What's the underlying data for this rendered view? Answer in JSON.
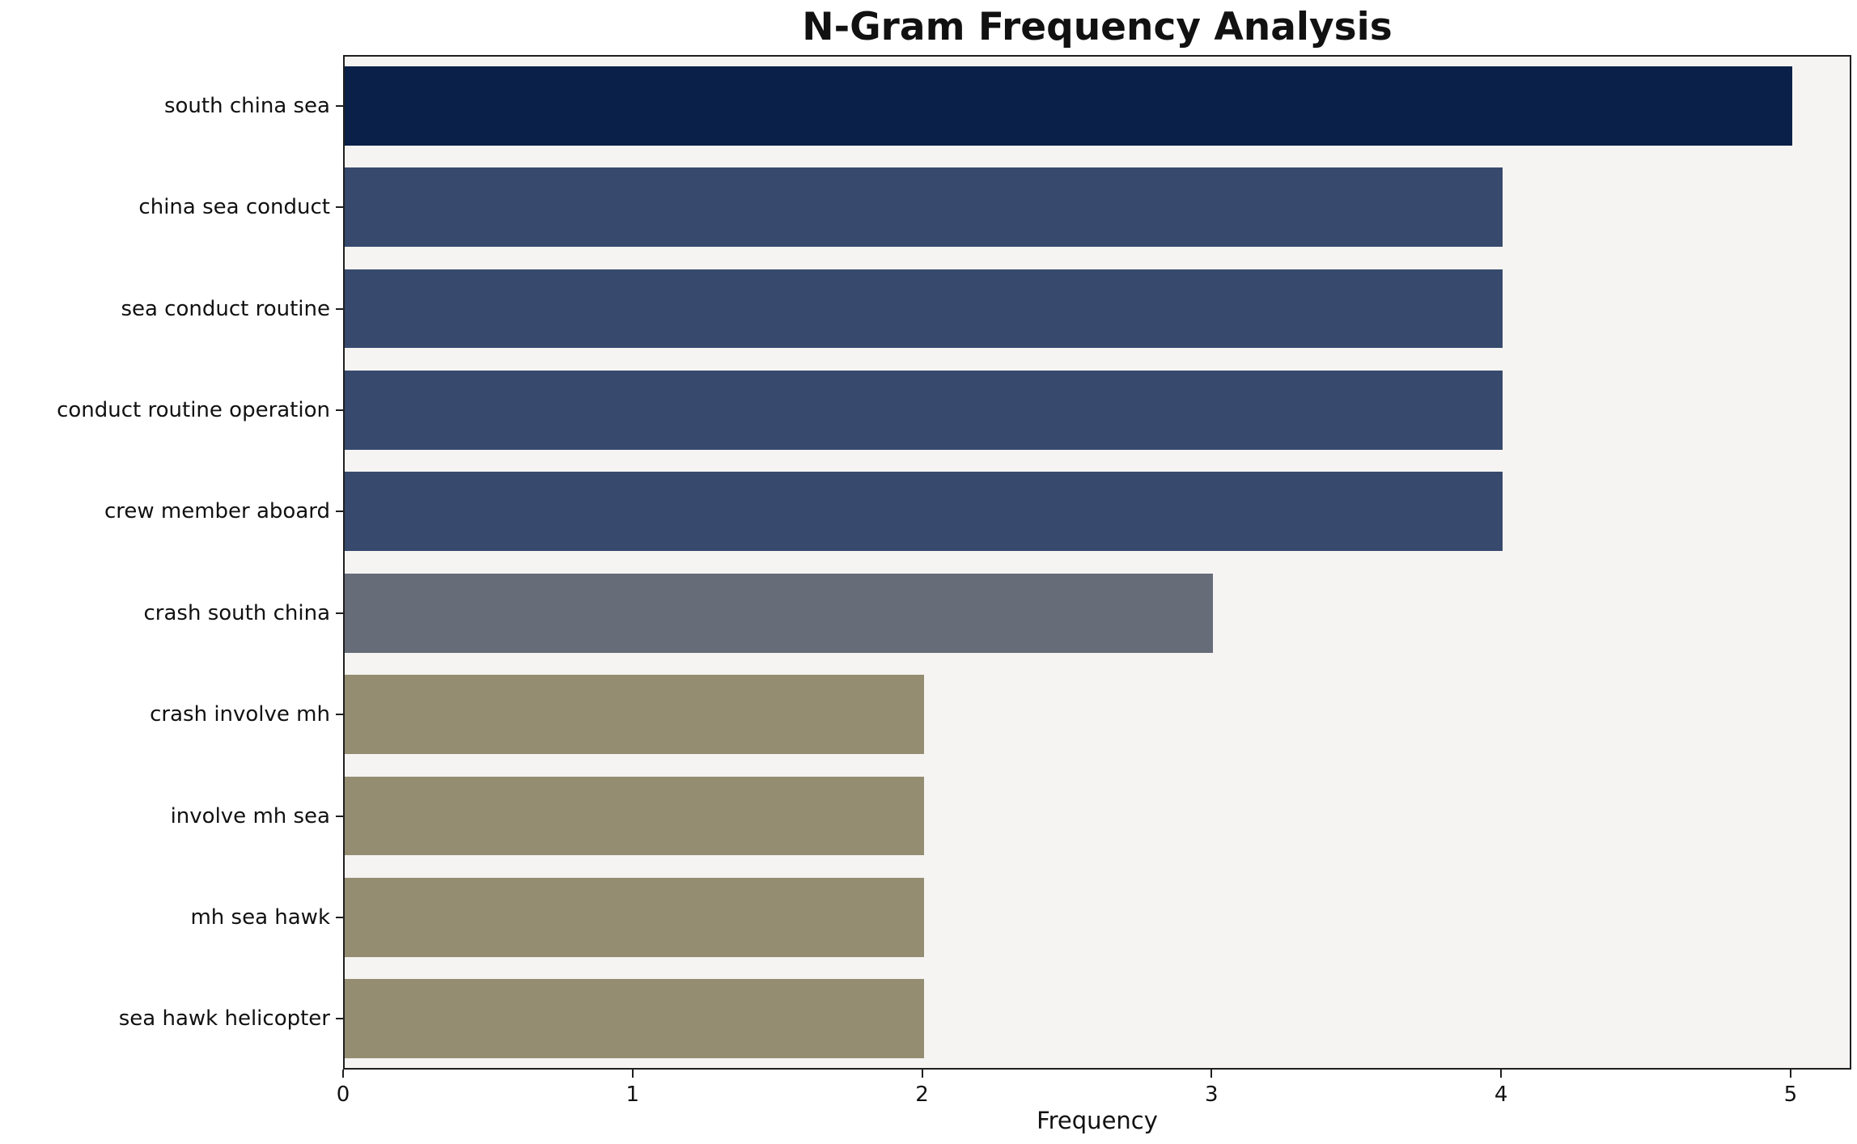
{
  "chart_data": {
    "type": "bar",
    "orientation": "horizontal",
    "title": "N-Gram Frequency Analysis",
    "xlabel": "Frequency",
    "ylabel": "",
    "xlim": [
      0,
      5.21
    ],
    "xticks": [
      0,
      1,
      2,
      3,
      4,
      5
    ],
    "grid": false,
    "legend": "none",
    "plot_background": "#f5f4f2",
    "categories": [
      "south china sea",
      "china sea conduct",
      "sea conduct routine",
      "conduct routine operation",
      "crew member aboard",
      "crash south china",
      "crash involve mh",
      "involve mh sea",
      "mh sea hawk",
      "sea hawk helicopter"
    ],
    "values": [
      5,
      4,
      4,
      4,
      4,
      3,
      2,
      2,
      2,
      2
    ],
    "colors": [
      "#0a2048",
      "#374a6e",
      "#374a6e",
      "#374a6e",
      "#374a6e",
      "#676c79",
      "#948d71",
      "#948d71",
      "#948d71",
      "#948d71"
    ]
  }
}
